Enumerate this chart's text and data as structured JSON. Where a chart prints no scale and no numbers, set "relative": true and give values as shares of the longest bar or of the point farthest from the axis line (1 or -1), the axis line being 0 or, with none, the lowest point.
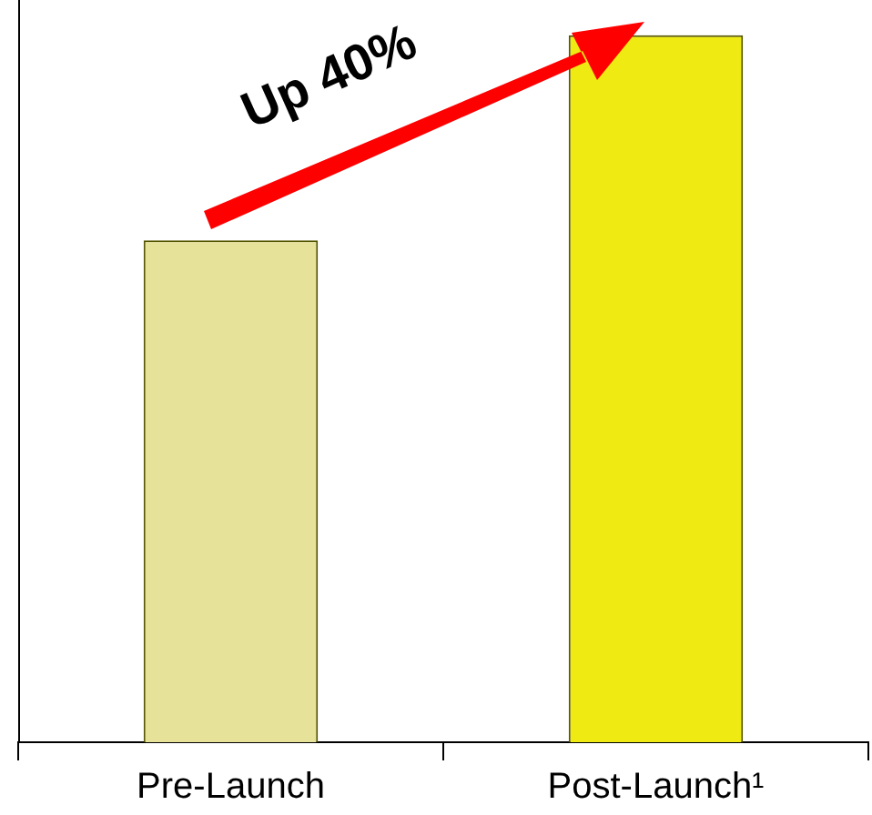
{
  "chart_data": {
    "type": "bar",
    "relative": true,
    "categories": [
      "Pre-Launch",
      "Post-Launch¹"
    ],
    "values": [
      0.71,
      1
    ],
    "colors": [
      "#e6e29a",
      "#eeea12"
    ],
    "annotations": [
      "Up 40%"
    ],
    "grid": false,
    "legend": false
  }
}
